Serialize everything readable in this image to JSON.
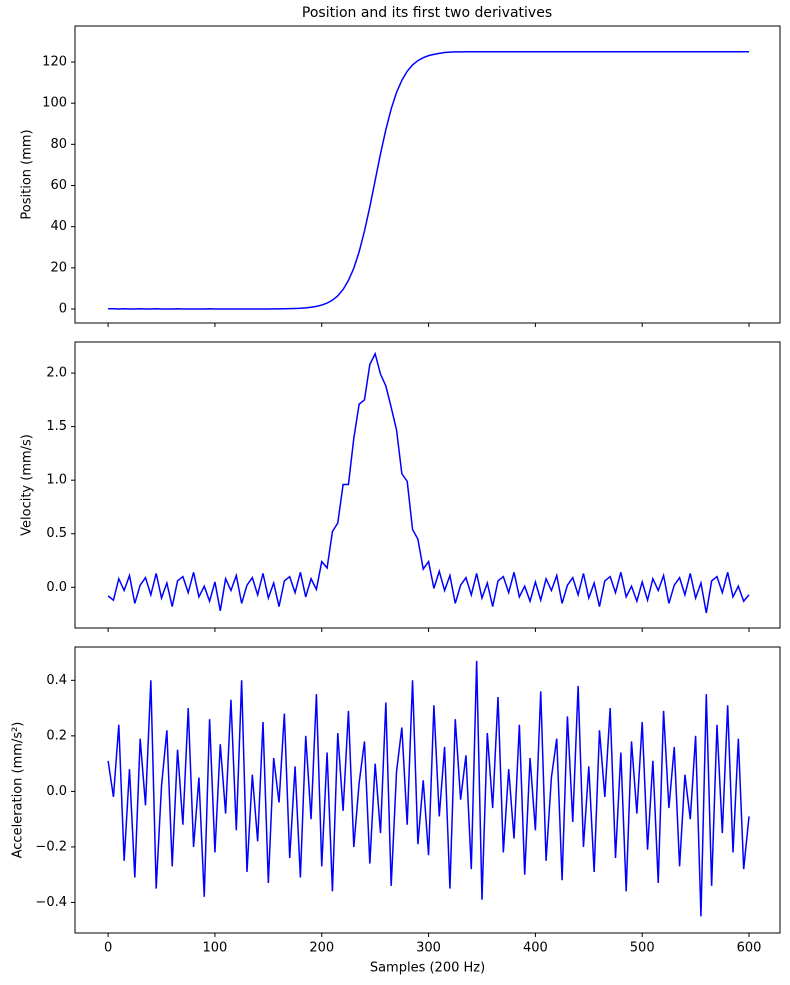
{
  "title": "Position and its first two derivatives",
  "chart_data": [
    {
      "type": "line",
      "ylabel": "Position (mm)",
      "x": [
        0,
        5,
        10,
        15,
        20,
        25,
        30,
        35,
        40,
        45,
        50,
        55,
        60,
        65,
        70,
        75,
        80,
        85,
        90,
        95,
        100,
        105,
        110,
        115,
        120,
        125,
        130,
        135,
        140,
        145,
        150,
        155,
        160,
        165,
        170,
        175,
        180,
        185,
        190,
        195,
        200,
        205,
        210,
        215,
        220,
        225,
        230,
        235,
        240,
        245,
        250,
        255,
        260,
        265,
        270,
        275,
        280,
        285,
        290,
        295,
        300,
        305,
        310,
        315,
        320,
        325,
        330,
        335,
        340,
        345,
        350,
        355,
        360,
        365,
        370,
        375,
        380,
        385,
        390,
        395,
        400,
        405,
        410,
        415,
        420,
        425,
        430,
        435,
        440,
        445,
        450,
        455,
        460,
        465,
        470,
        475,
        480,
        485,
        490,
        495,
        500,
        505,
        510,
        515,
        520,
        525,
        530,
        535,
        540,
        545,
        550,
        555,
        560,
        565,
        570,
        575,
        580,
        585,
        590,
        595,
        600
      ],
      "series": [
        {
          "color": "#0000ff",
          "values": [
            0.1,
            0.1,
            0,
            0.1,
            0,
            0,
            0.1,
            0,
            0,
            0.1,
            0,
            0,
            0,
            0.1,
            0,
            0,
            0,
            0,
            0,
            0.1,
            0,
            0,
            0,
            0,
            0,
            0,
            0,
            0,
            0,
            0,
            0.03,
            0.05,
            0.07,
            0.1,
            0.16,
            0.25,
            0.37,
            0.56,
            0.84,
            1.26,
            1.91,
            2.87,
            4.3,
            6.4,
            9.5,
            13.9,
            19.8,
            27.8,
            37.9,
            49.6,
            62.5,
            75.4,
            87.1,
            97.2,
            105.2,
            111.1,
            115.5,
            118.6,
            120.7,
            122.1,
            123.1,
            123.7,
            124.2,
            124.6,
            124.8,
            124.9,
            124.9,
            125,
            125,
            125,
            125,
            125,
            125,
            125,
            125,
            125,
            125,
            125,
            125,
            125,
            125,
            125,
            125,
            125,
            125,
            125,
            125,
            125,
            125,
            125,
            125,
            125,
            125,
            125,
            125,
            125,
            125,
            125,
            125,
            125,
            125,
            125,
            125,
            125,
            125,
            125,
            125,
            125,
            125,
            125,
            125,
            125,
            125,
            125,
            125,
            125,
            125,
            125,
            125,
            125,
            125
          ]
        }
      ],
      "xlim": [
        -31,
        629
      ],
      "ylim": [
        -6.8,
        137.5
      ],
      "xticks": [
        0,
        100,
        200,
        300,
        400,
        500,
        600
      ],
      "yticks": [
        0,
        20,
        40,
        60,
        80,
        100,
        120
      ]
    },
    {
      "type": "line",
      "ylabel": "Velocity (mm/s)",
      "x": [
        0,
        5,
        10,
        15,
        20,
        25,
        30,
        35,
        40,
        45,
        50,
        55,
        60,
        65,
        70,
        75,
        80,
        85,
        90,
        95,
        100,
        105,
        110,
        115,
        120,
        125,
        130,
        135,
        140,
        145,
        150,
        155,
        160,
        165,
        170,
        175,
        180,
        185,
        190,
        195,
        200,
        205,
        210,
        215,
        220,
        225,
        230,
        235,
        240,
        245,
        250,
        255,
        260,
        265,
        270,
        275,
        280,
        285,
        290,
        295,
        300,
        305,
        310,
        315,
        320,
        325,
        330,
        335,
        340,
        345,
        350,
        355,
        360,
        365,
        370,
        375,
        380,
        385,
        390,
        395,
        400,
        405,
        410,
        415,
        420,
        425,
        430,
        435,
        440,
        445,
        450,
        455,
        460,
        465,
        470,
        475,
        480,
        485,
        490,
        495,
        500,
        505,
        510,
        515,
        520,
        525,
        530,
        535,
        540,
        545,
        550,
        555,
        560,
        565,
        570,
        575,
        580,
        585,
        590,
        595,
        600
      ],
      "series": [
        {
          "color": "#0000ff",
          "values": [
            -0.08,
            -0.12,
            0.08,
            -0.03,
            0.11,
            -0.15,
            0.02,
            0.09,
            -0.07,
            0.13,
            -0.1,
            0.04,
            -0.18,
            0.06,
            0.1,
            -0.05,
            0.14,
            -0.09,
            0.01,
            -0.13,
            0.05,
            -0.22,
            0.08,
            -0.03,
            0.11,
            -0.15,
            0.02,
            0.09,
            -0.07,
            0.13,
            -0.1,
            0.04,
            -0.18,
            0.06,
            0.1,
            -0.05,
            0.14,
            -0.09,
            0.08,
            -0.02,
            0.24,
            0.18,
            0.52,
            0.6,
            0.96,
            0.96,
            1.39,
            1.71,
            1.75,
            2.08,
            2.18,
            1.99,
            1.88,
            1.68,
            1.47,
            1.06,
            0.99,
            0.54,
            0.45,
            0.17,
            0.24,
            -0.01,
            0.15,
            -0.03,
            0.11,
            -0.15,
            0.02,
            0.09,
            -0.07,
            0.13,
            -0.1,
            0.04,
            -0.18,
            0.06,
            0.1,
            -0.05,
            0.14,
            -0.09,
            0.01,
            -0.13,
            0.05,
            -0.12,
            0.08,
            -0.03,
            0.11,
            -0.15,
            0.02,
            0.09,
            -0.07,
            0.13,
            -0.1,
            0.04,
            -0.18,
            0.06,
            0.1,
            -0.05,
            0.14,
            -0.09,
            0.01,
            -0.13,
            0.05,
            -0.12,
            0.08,
            -0.03,
            0.11,
            -0.15,
            0.02,
            0.09,
            -0.07,
            0.13,
            -0.1,
            0.04,
            -0.24,
            0.06,
            0.1,
            -0.05,
            0.14,
            -0.09,
            0.01,
            -0.13,
            -0.07
          ]
        }
      ],
      "xlim": [
        -31,
        629
      ],
      "ylim": [
        -0.38,
        2.29
      ],
      "xticks": [
        0,
        100,
        200,
        300,
        400,
        500,
        600
      ],
      "yticks": [
        {
          "value": 0,
          "label": "0.0"
        },
        0.5,
        {
          "value": 1,
          "label": "1.0"
        },
        1.5,
        {
          "value": 2,
          "label": "2.0"
        }
      ]
    },
    {
      "type": "line",
      "ylabel": "Acceleration (mm/s²)",
      "xlabel": "Samples (200 Hz)",
      "x": [
        0,
        5,
        10,
        15,
        20,
        25,
        30,
        35,
        40,
        45,
        50,
        55,
        60,
        65,
        70,
        75,
        80,
        85,
        90,
        95,
        100,
        105,
        110,
        115,
        120,
        125,
        130,
        135,
        140,
        145,
        150,
        155,
        160,
        165,
        170,
        175,
        180,
        185,
        190,
        195,
        200,
        205,
        210,
        215,
        220,
        225,
        230,
        235,
        240,
        245,
        250,
        255,
        260,
        265,
        270,
        275,
        280,
        285,
        290,
        295,
        300,
        305,
        310,
        315,
        320,
        325,
        330,
        335,
        340,
        345,
        350,
        355,
        360,
        365,
        370,
        375,
        380,
        385,
        390,
        395,
        400,
        405,
        410,
        415,
        420,
        425,
        430,
        435,
        440,
        445,
        450,
        455,
        460,
        465,
        470,
        475,
        480,
        485,
        490,
        495,
        500,
        505,
        510,
        515,
        520,
        525,
        530,
        535,
        540,
        545,
        550,
        555,
        560,
        565,
        570,
        575,
        580,
        585,
        590,
        595,
        600
      ],
      "series": [
        {
          "color": "#0000ff",
          "values": [
            0.11,
            -0.02,
            0.24,
            -0.25,
            0.08,
            -0.31,
            0.19,
            -0.05,
            0.4,
            -0.35,
            0.02,
            0.22,
            -0.27,
            0.15,
            -0.12,
            0.3,
            -0.2,
            0.05,
            -0.38,
            0.26,
            -0.22,
            0.17,
            -0.08,
            0.33,
            -0.14,
            0.4,
            -0.29,
            0.06,
            -0.18,
            0.25,
            -0.33,
            0.12,
            -0.04,
            0.28,
            -0.24,
            0.09,
            -0.31,
            0.2,
            -0.1,
            0.35,
            -0.27,
            0.14,
            -0.36,
            0.21,
            -0.07,
            0.29,
            -0.2,
            0.03,
            0.18,
            -0.26,
            0.1,
            -0.15,
            0.32,
            -0.34,
            0.07,
            0.23,
            -0.12,
            0.4,
            -0.19,
            0.04,
            -0.23,
            0.31,
            -0.09,
            0.16,
            -0.35,
            0.26,
            -0.03,
            0.13,
            -0.28,
            0.47,
            -0.39,
            0.21,
            -0.06,
            0.34,
            -0.22,
            0.08,
            -0.17,
            0.24,
            -0.3,
            0.12,
            -0.14,
            0.36,
            -0.25,
            0.05,
            0.19,
            -0.32,
            0.27,
            -0.11,
            0.38,
            -0.2,
            0.09,
            -0.29,
            0.22,
            -0.02,
            0.3,
            -0.24,
            0.14,
            -0.36,
            0.18,
            -0.08,
            0.25,
            -0.21,
            0.11,
            -0.33,
            0.29,
            -0.06,
            0.16,
            -0.27,
            0.06,
            -0.1,
            0.2,
            -0.45,
            0.35,
            -0.34,
            0.24,
            -0.15,
            0.31,
            -0.22,
            0.19,
            -0.28,
            -0.09
          ]
        }
      ],
      "xlim": [
        -31,
        629
      ],
      "ylim": [
        -0.51,
        0.52
      ],
      "xticks": [
        0,
        100,
        200,
        300,
        400,
        500,
        600
      ],
      "yticks": [
        {
          "value": -0.4,
          "label": "−0.4"
        },
        {
          "value": -0.2,
          "label": "−0.2"
        },
        {
          "value": 0,
          "label": "0.0"
        },
        0.2,
        0.4
      ]
    }
  ]
}
